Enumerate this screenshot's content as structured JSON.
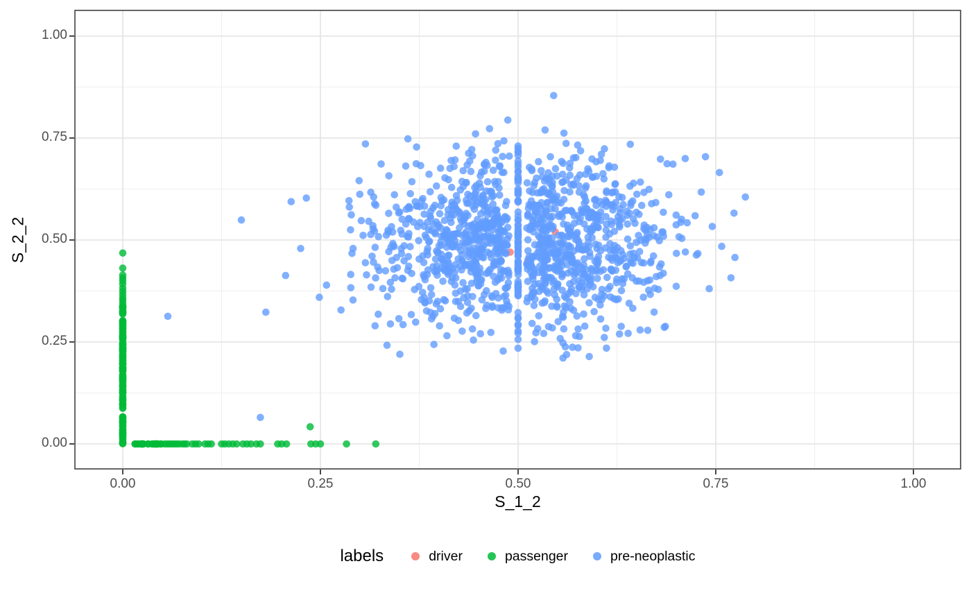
{
  "chart_data": {
    "type": "scatter",
    "title": "",
    "xlabel": "S_1_2",
    "ylabel": "S_2_2",
    "xlim": [
      -0.06,
      1.06
    ],
    "ylim": [
      -0.06,
      1.06
    ],
    "grid": "major+minor",
    "axes": {
      "x": {
        "title": "S_1_2",
        "tick_labels": [
          "0.00",
          "0.25",
          "0.50",
          "0.75",
          "1.00"
        ],
        "tick_values": [
          0,
          0.25,
          0.5,
          0.75,
          1
        ],
        "minor_tick_values": [
          0.125,
          0.375,
          0.625,
          0.875
        ]
      },
      "y": {
        "title": "S_2_2",
        "tick_labels": [
          "0.00",
          "0.25",
          "0.50",
          "0.75",
          "1.00"
        ],
        "tick_values": [
          0,
          0.25,
          0.5,
          0.75,
          1
        ],
        "minor_tick_values": [
          0.125,
          0.375,
          0.625,
          0.875
        ]
      }
    },
    "legend": {
      "title": "labels",
      "position": "bottom",
      "items": [
        {
          "label": "driver",
          "color": "#F8766D"
        },
        {
          "label": "passenger",
          "color": "#00BA38"
        },
        {
          "label": "pre-neoplastic",
          "color": "#619CFF"
        }
      ]
    },
    "style": {
      "point_radius": 5.3,
      "point_opacity": 0.8,
      "grid_major_color": "#E6E6E6",
      "grid_minor_color": "#EFEFEF",
      "panel_border_color": "#333333",
      "tick_color": "#333333",
      "tick_label_color": "#4D4D4D",
      "axis_title_color": "#000000",
      "panel_background": "#FFFFFF"
    },
    "draw_order": [
      "driver",
      "pre-neoplastic",
      "passenger"
    ],
    "series": [
      {
        "name": "driver",
        "color": "#F8766D",
        "description": "nearly fully hidden beneath the pre-neoplastic cloud near (0.5, 0.5)",
        "points": [
          [
            0.564,
            0.463
          ],
          [
            0.538,
            0.492
          ],
          [
            0.512,
            0.447
          ],
          [
            0.547,
            0.52
          ],
          [
            0.49,
            0.47
          ]
        ],
        "generators": []
      },
      {
        "name": "passenger",
        "color": "#00BA38",
        "description": "dense column at x=0 spanning y 0-0.47 and row at y=0 spanning x 0-0.32",
        "points": [
          [
            0,
            0.345
          ],
          [
            0,
            0.352
          ],
          [
            0,
            0.358
          ],
          [
            0,
            0.366
          ],
          [
            0,
            0.374
          ],
          [
            0,
            0.382
          ],
          [
            0,
            0.392
          ],
          [
            0,
            0.4
          ],
          [
            0,
            0.407
          ],
          [
            0,
            0.414
          ],
          [
            0,
            0.431
          ],
          [
            0,
            0.468
          ],
          [
            0.053,
            0
          ],
          [
            0.056,
            0
          ],
          [
            0.059,
            0
          ],
          [
            0.062,
            0
          ],
          [
            0.065,
            0
          ],
          [
            0.068,
            0
          ],
          [
            0.071,
            0
          ],
          [
            0.075,
            0
          ],
          [
            0.078,
            0
          ],
          [
            0.081,
            0
          ],
          [
            0.088,
            0
          ],
          [
            0.092,
            0
          ],
          [
            0.096,
            0
          ],
          [
            0.104,
            0
          ],
          [
            0.108,
            0
          ],
          [
            0.112,
            0
          ],
          [
            0.125,
            0
          ],
          [
            0.129,
            0
          ],
          [
            0.134,
            0
          ],
          [
            0.139,
            0
          ],
          [
            0.144,
            0
          ],
          [
            0.152,
            0
          ],
          [
            0.157,
            0
          ],
          [
            0.162,
            0
          ],
          [
            0.169,
            0
          ],
          [
            0.174,
            0
          ],
          [
            0.196,
            0
          ],
          [
            0.201,
            0
          ],
          [
            0.207,
            0
          ],
          [
            0.238,
            0
          ],
          [
            0.244,
            0
          ],
          [
            0.25,
            0
          ],
          [
            0.283,
            0
          ],
          [
            0.32,
            0
          ],
          [
            0.237,
            0.042
          ]
        ],
        "generators": [
          {
            "shape": "uniform",
            "n": 150,
            "x": 0,
            "ymin": 0,
            "ymax": 0.34,
            "seed": 3
          },
          {
            "shape": "uniform",
            "n": 26,
            "y": 0,
            "xmin": 0.015,
            "xmax": 0.052,
            "seed": 5
          }
        ]
      },
      {
        "name": "pre-neoplastic",
        "color": "#619CFF",
        "description": "gaussian cloud centered near (0.51, 0.49) plus dense vertical stripe at exactly x=0.5",
        "points": [
          [
            0.545,
            0.854
          ],
          [
            0.487,
            0.794
          ],
          [
            0.558,
            0.762
          ],
          [
            0.482,
            0.743
          ],
          [
            0.057,
            0.313
          ],
          [
            0.15,
            0.549
          ],
          [
            0.181,
            0.323
          ],
          [
            0.174,
            0.065
          ],
          [
            0.0,
            0.055
          ],
          [
            0.206,
            0.413
          ],
          [
            0.213,
            0.594
          ]
        ],
        "generators": [
          {
            "shape": "normal",
            "n": 1300,
            "cx": 0.507,
            "cy": 0.488,
            "sdx": 0.093,
            "sdy": 0.1,
            "seed": 7,
            "clip": {
              "xmin": 0.21,
              "xmax": 0.8,
              "ymin": 0.185,
              "ymax": 0.795
            },
            "exclude_x_band": {
              "center": 0.5,
              "half_width": 0.011
            }
          },
          {
            "shape": "normal",
            "n": 88,
            "cx": 0.5,
            "cy": 0.48,
            "sdx": 0,
            "sdy": 0.115,
            "seed": 11,
            "clip": {
              "xmin": -1,
              "xmax": 2,
              "ymin": 0.232,
              "ymax": 0.753
            }
          }
        ]
      }
    ]
  }
}
